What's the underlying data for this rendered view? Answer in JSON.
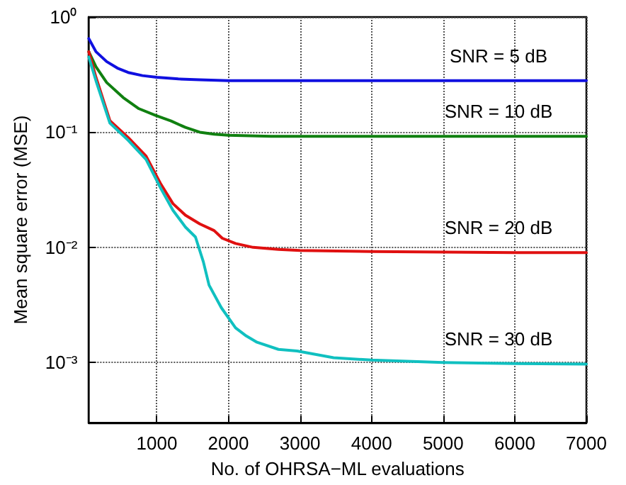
{
  "chart_data": {
    "type": "line",
    "xlabel": "No. of OHRSA−ML evaluations",
    "ylabel": "Mean square error (MSE)",
    "xlim": [
      50,
      7000
    ],
    "xticks": [
      1000,
      2000,
      3000,
      4000,
      5000,
      6000,
      7000
    ],
    "ylim": [
      0.0003,
      1
    ],
    "yticks": [
      {
        "value": 1,
        "label": "10⁰"
      },
      {
        "value": 0.1,
        "label": "10⁻¹"
      },
      {
        "value": 0.01,
        "label": "10⁻²"
      },
      {
        "value": 0.001,
        "label": "10⁻³"
      }
    ],
    "log": "y",
    "grid": true,
    "legend": false,
    "marker": "none",
    "line_style": "solid",
    "series": [
      {
        "name": "SNR = 5 dB",
        "color": "#1010e0",
        "x": [
          50,
          150,
          300,
          450,
          600,
          800,
          1000,
          1300,
          1600,
          2000,
          2500,
          3000,
          4000,
          5000,
          6000,
          7000
        ],
        "values": [
          0.65,
          0.5,
          0.41,
          0.36,
          0.33,
          0.31,
          0.3,
          0.29,
          0.285,
          0.28,
          0.28,
          0.28,
          0.28,
          0.28,
          0.28,
          0.28
        ]
      },
      {
        "name": "SNR = 10 dB",
        "color": "#108010",
        "x": [
          50,
          150,
          300,
          530,
          750,
          980,
          1200,
          1400,
          1600,
          1800,
          2000,
          2300,
          2600,
          3000,
          4000,
          5000,
          6000,
          7000
        ],
        "values": [
          0.5,
          0.37,
          0.27,
          0.2,
          0.16,
          0.14,
          0.125,
          0.11,
          0.1,
          0.096,
          0.094,
          0.093,
          0.092,
          0.092,
          0.092,
          0.092,
          0.092,
          0.092
        ]
      },
      {
        "name": "SNR = 20 dB",
        "color": "#e01010",
        "x": [
          50,
          150,
          345,
          600,
          850,
          1050,
          1225,
          1400,
          1600,
          1800,
          1915,
          2100,
          2345,
          2700,
          3000,
          4000,
          5000,
          6000,
          7000
        ],
        "values": [
          0.5,
          0.3,
          0.126,
          0.09,
          0.062,
          0.036,
          0.024,
          0.019,
          0.016,
          0.014,
          0.012,
          0.0108,
          0.01,
          0.0096,
          0.0094,
          0.0092,
          0.0091,
          0.009,
          0.009
        ]
      },
      {
        "name": "SNR = 30 dB",
        "color": "#10c0c0",
        "x": [
          50,
          150,
          345,
          600,
          850,
          1050,
          1225,
          1400,
          1540,
          1650,
          1730,
          1900,
          2100,
          2250,
          2400,
          2700,
          2960,
          3470,
          4000,
          5000,
          6000,
          7000
        ],
        "values": [
          0.45,
          0.28,
          0.12,
          0.085,
          0.058,
          0.033,
          0.021,
          0.015,
          0.0123,
          0.0075,
          0.0047,
          0.003,
          0.002,
          0.0017,
          0.0015,
          0.0013,
          0.00126,
          0.0011,
          0.00105,
          0.001,
          0.00098,
          0.00097
        ]
      }
    ]
  }
}
